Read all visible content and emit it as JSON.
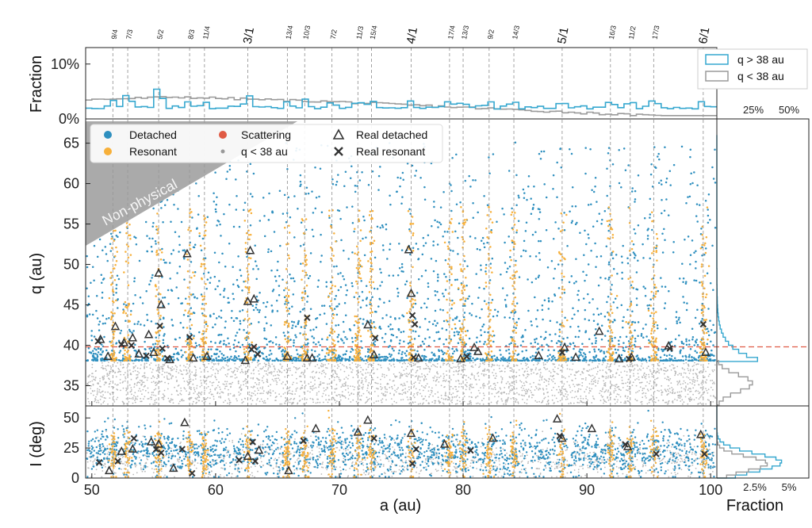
{
  "chart_data": [
    {
      "panel": "top-histogram",
      "type": "histogram",
      "ylabel": "Fraction",
      "yticks": [
        "0%",
        "10%"
      ],
      "ylim": [
        0,
        13
      ],
      "xlim": [
        49.5,
        100.5
      ],
      "legend_position": "top-right",
      "series": [
        {
          "name": "q > 38 au",
          "color": "#35a7cf"
        },
        {
          "name": "q < 38 au",
          "color": "#9a9a9a"
        }
      ],
      "resonances": [
        {
          "label": "9/4",
          "a": 51.7,
          "major": false
        },
        {
          "label": "7/3",
          "a": 52.9,
          "major": false
        },
        {
          "label": "5/2",
          "a": 55.4,
          "major": false
        },
        {
          "label": "8/3",
          "a": 57.9,
          "major": false
        },
        {
          "label": "11/4",
          "a": 59.1,
          "major": false
        },
        {
          "label": "3/1",
          "a": 62.6,
          "major": true
        },
        {
          "label": "13/4",
          "a": 65.8,
          "major": false
        },
        {
          "label": "10/3",
          "a": 67.2,
          "major": false
        },
        {
          "label": "7/2",
          "a": 69.4,
          "major": false
        },
        {
          "label": "11/3",
          "a": 71.5,
          "major": false
        },
        {
          "label": "15/4",
          "a": 72.6,
          "major": false
        },
        {
          "label": "4/1",
          "a": 75.8,
          "major": true
        },
        {
          "label": "17/4",
          "a": 78.9,
          "major": false
        },
        {
          "label": "13/3",
          "a": 80.0,
          "major": false
        },
        {
          "label": "9/2",
          "a": 82.1,
          "major": false
        },
        {
          "label": "14/3",
          "a": 84.1,
          "major": false
        },
        {
          "label": "5/1",
          "a": 88.0,
          "major": true
        },
        {
          "label": "16/3",
          "a": 91.9,
          "major": false
        },
        {
          "label": "11/2",
          "a": 93.5,
          "major": false
        },
        {
          "label": "17/3",
          "a": 95.4,
          "major": false
        },
        {
          "label": "6/1",
          "a": 99.4,
          "major": true
        }
      ]
    },
    {
      "panel": "main-scatter",
      "type": "scatter",
      "xlabel": "a (au)",
      "ylabel": "q (au)",
      "xlim": [
        49.5,
        100.5
      ],
      "ylim": [
        32.5,
        68
      ],
      "xticks": [
        50,
        60,
        70,
        80,
        90,
        100
      ],
      "yticks": [
        35,
        40,
        45,
        50,
        55,
        60,
        65
      ],
      "threshold_q": 38,
      "annotation": "Non-physical",
      "legend": [
        {
          "name": "Detached",
          "color": "#2e8fbf",
          "marker": "circle"
        },
        {
          "name": "Resonant",
          "color": "#f7b03a",
          "marker": "circle"
        },
        {
          "name": "Scattering",
          "color": "#e05a44",
          "marker": "circle"
        },
        {
          "name": "q < 38 au",
          "color": "#999999",
          "marker": "small-circle"
        },
        {
          "name": "Real detached",
          "color": "#333333",
          "marker": "triangle"
        },
        {
          "name": "Real resonant",
          "color": "#333333",
          "marker": "x"
        }
      ],
      "real_detached": [
        [
          50.7,
          40.7
        ],
        [
          51.3,
          38.6
        ],
        [
          51.9,
          42.3
        ],
        [
          52.6,
          40.3
        ],
        [
          53.3,
          40.9
        ],
        [
          53.8,
          38.9
        ],
        [
          54.6,
          41.3
        ],
        [
          55.0,
          39.1
        ],
        [
          55.4,
          48.9
        ],
        [
          55.6,
          45.0
        ],
        [
          56.3,
          38.2
        ],
        [
          57.7,
          51.3
        ],
        [
          58.2,
          38.4
        ],
        [
          59.3,
          38.6
        ],
        [
          62.4,
          38.1
        ],
        [
          62.6,
          45.4
        ],
        [
          62.8,
          51.7
        ],
        [
          63.1,
          45.7
        ],
        [
          65.8,
          38.6
        ],
        [
          67.4,
          38.4
        ],
        [
          67.8,
          38.4
        ],
        [
          72.3,
          42.5
        ],
        [
          72.8,
          38.8
        ],
        [
          75.6,
          51.8
        ],
        [
          75.8,
          46.4
        ],
        [
          76.4,
          38.4
        ],
        [
          79.8,
          38.3
        ],
        [
          80.9,
          39.7
        ],
        [
          81.2,
          39.2
        ],
        [
          86.1,
          38.7
        ],
        [
          88.2,
          39.7
        ],
        [
          89.1,
          38.5
        ],
        [
          91.0,
          41.7
        ],
        [
          92.6,
          38.3
        ],
        [
          93.6,
          38.5
        ],
        [
          96.6,
          39.9
        ],
        [
          99.6,
          39.1
        ]
      ],
      "real_resonant": [
        [
          50.5,
          40.5
        ],
        [
          52.4,
          40.1
        ],
        [
          53.2,
          40.0
        ],
        [
          54.4,
          38.7
        ],
        [
          55.5,
          42.4
        ],
        [
          55.7,
          39.6
        ],
        [
          56.1,
          38.4
        ],
        [
          57.9,
          41.0
        ],
        [
          62.9,
          39.5
        ],
        [
          63.1,
          39.8
        ],
        [
          63.4,
          38.9
        ],
        [
          67.4,
          43.4
        ],
        [
          72.9,
          40.9
        ],
        [
          75.9,
          43.7
        ],
        [
          76.1,
          42.6
        ],
        [
          76.0,
          38.5
        ],
        [
          80.3,
          38.6
        ],
        [
          88.0,
          39.1
        ],
        [
          93.4,
          38.3
        ],
        [
          96.7,
          39.6
        ],
        [
          99.4,
          42.6
        ]
      ]
    },
    {
      "panel": "right-histogram-q",
      "type": "histogram",
      "xticks": [
        "25%",
        "50%"
      ],
      "series": [
        {
          "name": "q > 38 au",
          "color": "#35a7cf"
        },
        {
          "name": "q < 38 au",
          "color": "#9a9a9a"
        }
      ]
    },
    {
      "panel": "bottom-scatter",
      "type": "scatter",
      "xlabel": "a (au)",
      "ylabel": "I (deg)",
      "xlim": [
        49.5,
        100.5
      ],
      "ylim": [
        0,
        60
      ],
      "yticks": [
        0,
        25,
        50
      ],
      "real_detached": [
        [
          51.4,
          6
        ],
        [
          52.4,
          22
        ],
        [
          53.3,
          24
        ],
        [
          54.8,
          30
        ],
        [
          55.4,
          28
        ],
        [
          56.6,
          8
        ],
        [
          57.5,
          46
        ],
        [
          62.6,
          18
        ],
        [
          63.5,
          23
        ],
        [
          65.9,
          6
        ],
        [
          68.1,
          41
        ],
        [
          71.5,
          38
        ],
        [
          72.3,
          48
        ],
        [
          75.8,
          37
        ],
        [
          78.5,
          28
        ],
        [
          82.4,
          33
        ],
        [
          87.6,
          49
        ],
        [
          88.0,
          33
        ],
        [
          90.4,
          41
        ],
        [
          93.3,
          26
        ],
        [
          99.2,
          36
        ]
      ],
      "real_resonant": [
        [
          50.6,
          13
        ],
        [
          52.1,
          14
        ],
        [
          53.4,
          33
        ],
        [
          55.2,
          24
        ],
        [
          55.6,
          21
        ],
        [
          57.3,
          24
        ],
        [
          58.1,
          4
        ],
        [
          61.9,
          15
        ],
        [
          63.0,
          30
        ],
        [
          63.2,
          14
        ],
        [
          67.1,
          31
        ],
        [
          72.8,
          33
        ],
        [
          75.9,
          12
        ],
        [
          76.2,
          24
        ],
        [
          80.6,
          23
        ],
        [
          87.8,
          35
        ],
        [
          93.1,
          28
        ],
        [
          95.6,
          20
        ],
        [
          99.5,
          20
        ]
      ]
    },
    {
      "panel": "right-histogram-I",
      "type": "histogram",
      "xlabel": "Fraction",
      "xticks": [
        "2.5%",
        "5%"
      ],
      "series": [
        {
          "name": "q > 38 au",
          "color": "#35a7cf"
        },
        {
          "name": "q < 38 au",
          "color": "#9a9a9a"
        }
      ]
    }
  ]
}
